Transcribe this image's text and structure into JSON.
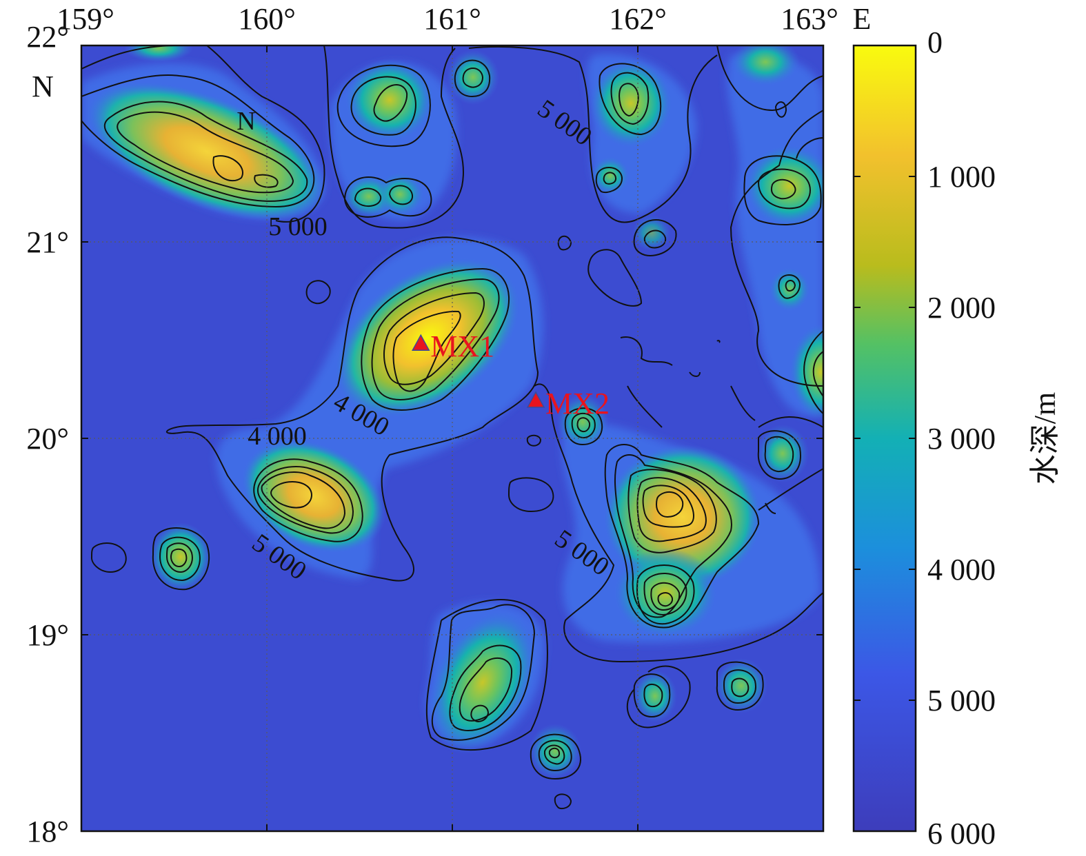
{
  "map": {
    "longitude_ticks": [
      "159°",
      "160°",
      "161°",
      "162°",
      "163°"
    ],
    "longitude_suffix": "E",
    "latitude_ticks": [
      "22°",
      "21°",
      "20°",
      "19°",
      "18°"
    ],
    "latitude_suffix": "N",
    "north_label": "N",
    "contour_labels": [
      "5 000",
      "5 000",
      "4 000",
      "4 000",
      "5 000",
      "5 000"
    ],
    "stations": [
      {
        "name": "MX1",
        "lon": 160.83,
        "lat": 20.48
      },
      {
        "name": "MX2",
        "lon": 161.45,
        "lat": 20.19
      }
    ],
    "station_color": "#e8141e"
  },
  "colorbar": {
    "title": "水深/m",
    "ticks": [
      "0",
      "1 000",
      "2 000",
      "3 000",
      "4 000",
      "5 000",
      "6 000"
    ],
    "range": [
      0,
      6000
    ],
    "colors": [
      "#f9fb0e",
      "#f2c12d",
      "#b9bc1d",
      "#54c164",
      "#13b0b5",
      "#1c8fdc",
      "#3c57e6",
      "#3d3dbb"
    ]
  }
}
